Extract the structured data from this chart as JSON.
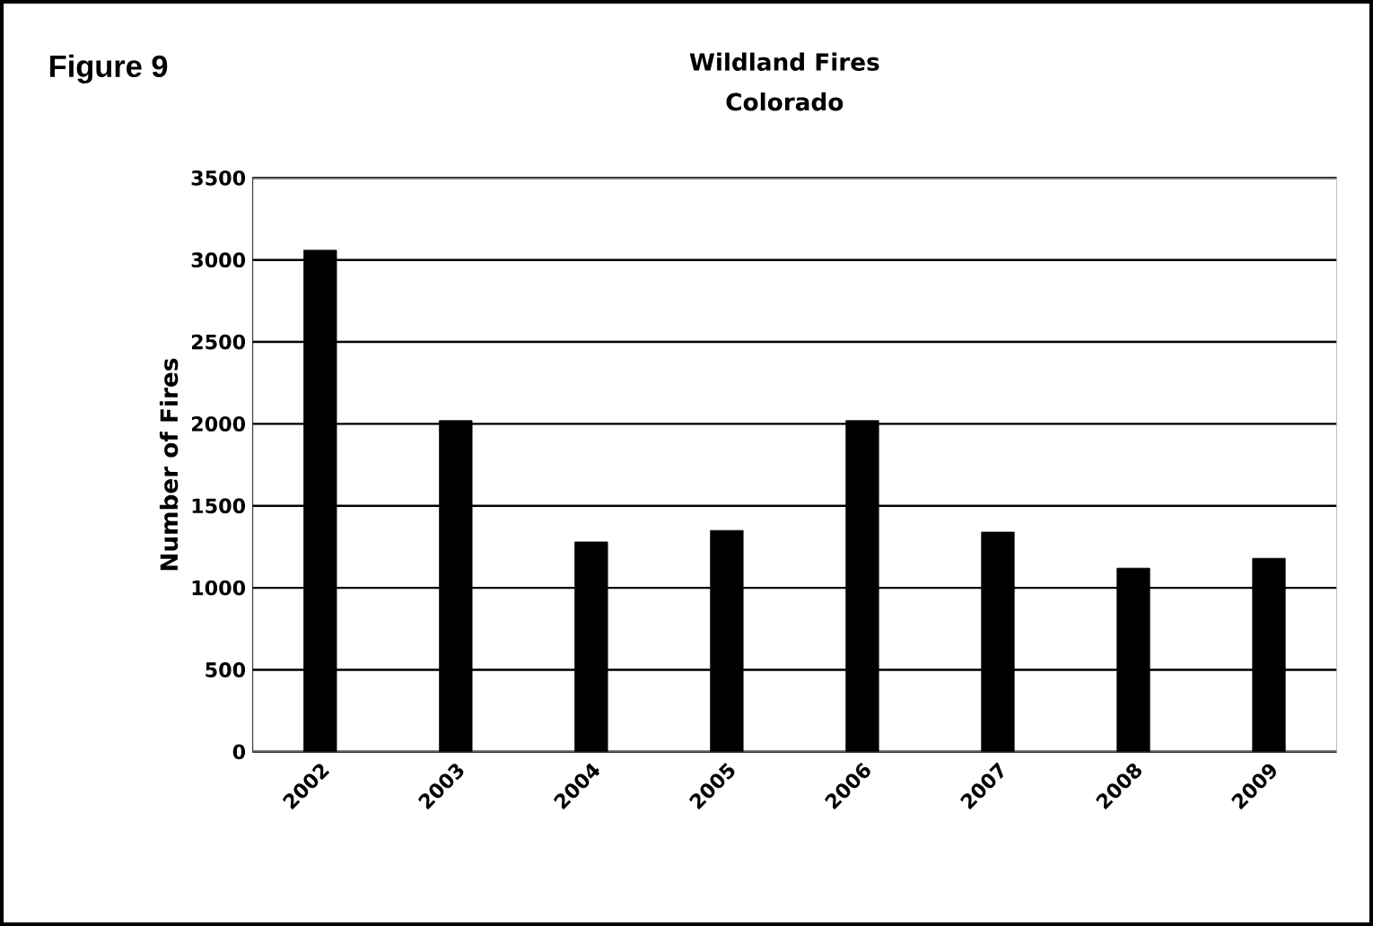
{
  "chart_data": {
    "type": "bar",
    "title": "Wildland Fires",
    "subtitle": "Colorado",
    "ylabel": "Number of Fires",
    "annotations": [
      "Figure 9"
    ],
    "categories": [
      "2002",
      "2003",
      "2004",
      "2005",
      "2006",
      "2007",
      "2008",
      "2009"
    ],
    "values": [
      3060,
      2020,
      1280,
      1350,
      2020,
      1340,
      1120,
      1180
    ],
    "color": "#000000",
    "ylim": [
      0,
      3500
    ],
    "yticks": [
      0,
      500,
      1000,
      1500,
      2000,
      2500,
      3000,
      3500
    ],
    "grid": "y"
  }
}
